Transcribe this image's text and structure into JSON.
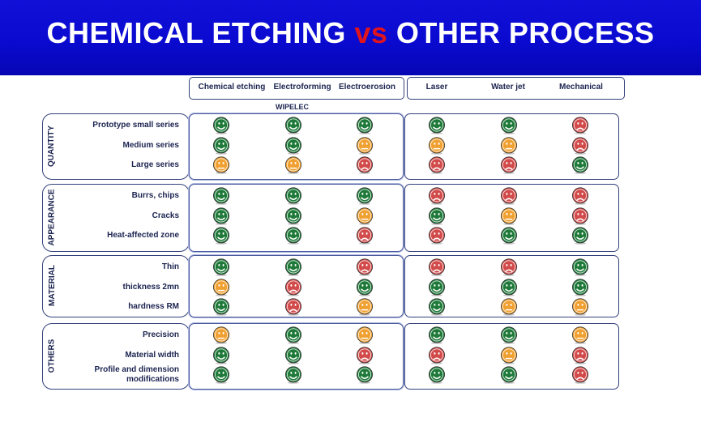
{
  "banner": {
    "title_a": "CHEMICAL ETCHING ",
    "title_vs": "vs",
    "title_b": " OTHER PROCESS"
  },
  "header_note": "WIPELEC",
  "columns": [
    "Chemical etching",
    "Electroforming",
    "Electroerosion",
    "Laser",
    "Water jet",
    "Mechanical"
  ],
  "colors": {
    "good": "#1f7a3a",
    "average": "#f0a030",
    "bad": "#d24a4a",
    "border": "#33407a",
    "banner": "#0a0ad0"
  },
  "ratings_legend": {
    "good": "happy-face",
    "average": "neutral-face",
    "bad": "sad-face"
  },
  "categories": [
    {
      "name": "QUANTITY",
      "rows": [
        {
          "label": "Prototype small series",
          "ratings": [
            "good",
            "good",
            "good",
            "good",
            "good",
            "bad"
          ]
        },
        {
          "label": "Medium series",
          "ratings": [
            "good",
            "good",
            "average",
            "average",
            "average",
            "bad"
          ]
        },
        {
          "label": "Large series",
          "ratings": [
            "average",
            "average",
            "bad",
            "bad",
            "bad",
            "good"
          ]
        }
      ]
    },
    {
      "name": "APPEARANCE",
      "rows": [
        {
          "label": "Burrs, chips",
          "ratings": [
            "good",
            "good",
            "good",
            "bad",
            "bad",
            "bad"
          ]
        },
        {
          "label": "Cracks",
          "ratings": [
            "good",
            "good",
            "average",
            "good",
            "average",
            "bad"
          ]
        },
        {
          "label": "Heat-affected zone",
          "ratings": [
            "good",
            "good",
            "bad",
            "bad",
            "good",
            "good"
          ]
        }
      ]
    },
    {
      "name": "MATERIAL",
      "rows": [
        {
          "label": "Thin",
          "ratings": [
            "good",
            "good",
            "bad",
            "bad",
            "bad",
            "good"
          ]
        },
        {
          "label": "thickness 2mn",
          "ratings": [
            "average",
            "bad",
            "good",
            "good",
            "good",
            "good"
          ]
        },
        {
          "label": "hardness RM",
          "ratings": [
            "good",
            "bad",
            "average",
            "good",
            "average",
            "average"
          ]
        }
      ]
    },
    {
      "name": "OTHERS",
      "rows": [
        {
          "label": "Precision",
          "ratings": [
            "average",
            "good",
            "average",
            "good",
            "good",
            "average"
          ]
        },
        {
          "label": "Material width",
          "ratings": [
            "good",
            "good",
            "bad",
            "bad",
            "average",
            "bad"
          ]
        },
        {
          "label": "Profile and dimension modifications",
          "ratings": [
            "good",
            "good",
            "good",
            "good",
            "good",
            "bad"
          ]
        }
      ]
    }
  ]
}
